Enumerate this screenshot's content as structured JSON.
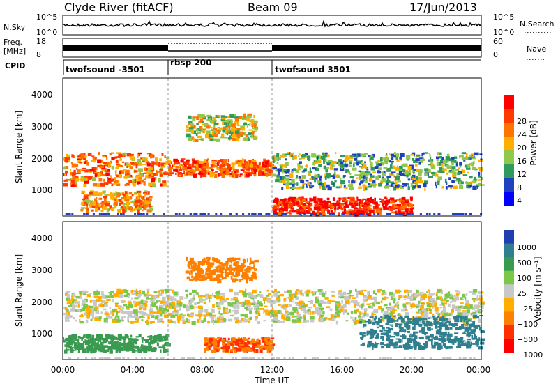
{
  "header": {
    "station": "Clyde River (fitACF)",
    "beam": "Beam 09",
    "date": "17/Jun/2013"
  },
  "strips": {
    "nsky_label": "N.Sky",
    "nsky_ticks": [
      "10^5",
      "10^0"
    ],
    "nsearch_label": "N.Search",
    "nsearch_ticks": [
      "10^5",
      "10^0"
    ],
    "freq_label_1": "Freq.",
    "freq_label_2": "[MHz]",
    "freq_ticks": [
      "18",
      "8"
    ],
    "nave_label": "Nave",
    "nave_ticks": [
      "60",
      "0"
    ],
    "cpid_label": "CPID",
    "cpid_segments": [
      {
        "name": "twofsound -3501",
        "start_hour": 0
      },
      {
        "name": "rbsp 200",
        "start_hour": 6
      },
      {
        "name": "twofsound 3501",
        "start_hour": 12
      }
    ]
  },
  "power_panel": {
    "ylabel": "Slant Range [km]",
    "yticks": [
      "4000",
      "3000",
      "2000",
      "1000"
    ],
    "colorbar_label": "Power [dB]",
    "colorbar_ticks": [
      "28",
      "24",
      "20",
      "16",
      "12",
      "8",
      "4"
    ],
    "colors": [
      "#ff0000",
      "#ff3a00",
      "#ff7400",
      "#ffaf00",
      "#8fc84a",
      "#2e9a5c",
      "#2040c0",
      "#0000ff"
    ]
  },
  "velocity_panel": {
    "ylabel": "Slant Range [km]",
    "yticks": [
      "4000",
      "3000",
      "2000",
      "1000"
    ],
    "colorbar_label": "Velocity [m s⁻¹]",
    "colorbar_ticks": [
      "1000",
      "500",
      "100",
      "25",
      "−25",
      "−100",
      "−500",
      "−1000"
    ],
    "colors": [
      "#1f3fb0",
      "#2f7f8f",
      "#3a9a50",
      "#7ac84a",
      "#c8c8c8",
      "#ffae00",
      "#ff8000",
      "#ff3000",
      "#ff0000"
    ]
  },
  "x_axis": {
    "label": "Time UT",
    "ticks": [
      "00:00",
      "04:00",
      "08:00",
      "12:00",
      "16:00",
      "20:00",
      "00:00"
    ]
  },
  "chart_data": [
    {
      "type": "heatmap",
      "title": "",
      "xlabel": "Time UT",
      "ylabel": "Slant Range [km]",
      "xlim_hours": [
        0,
        24
      ],
      "ylim_km": [
        200,
        4500
      ],
      "colorbar": "Power [dB]",
      "color_levels": [
        4,
        8,
        12,
        16,
        20,
        24,
        28
      ],
      "regions": [
        {
          "t": [
            0,
            6
          ],
          "range_km": [
            1200,
            2200
          ],
          "power_db": 20
        },
        {
          "t": [
            1,
            5
          ],
          "range_km": [
            400,
            1000
          ],
          "power_db": 18
        },
        {
          "t": [
            7,
            11
          ],
          "range_km": [
            2600,
            3400
          ],
          "power_db": 14
        },
        {
          "t": [
            6,
            12
          ],
          "range_km": [
            1500,
            2000
          ],
          "power_db": 22
        },
        {
          "t": [
            12,
            24
          ],
          "range_km": [
            1100,
            2200
          ],
          "power_db": 10
        },
        {
          "t": [
            12,
            20
          ],
          "range_km": [
            300,
            800
          ],
          "power_db": 26
        }
      ]
    },
    {
      "type": "heatmap",
      "title": "",
      "xlabel": "Time UT",
      "ylabel": "Slant Range [km]",
      "xlim_hours": [
        0,
        24
      ],
      "ylim_km": [
        200,
        4500
      ],
      "colorbar": "Velocity [m s⁻¹]",
      "color_levels": [
        -1000,
        -500,
        -100,
        -25,
        25,
        100,
        500,
        1000
      ],
      "regions": [
        {
          "t": [
            0,
            24
          ],
          "range_km": [
            1400,
            2400
          ],
          "velocity": 0
        },
        {
          "t": [
            7,
            11
          ],
          "range_km": [
            2700,
            3400
          ],
          "velocity": -200
        },
        {
          "t": [
            0,
            6
          ],
          "range_km": [
            500,
            1000
          ],
          "velocity": 150
        },
        {
          "t": [
            8,
            12
          ],
          "range_km": [
            500,
            900
          ],
          "velocity": -300
        },
        {
          "t": [
            17,
            24
          ],
          "range_km": [
            600,
            1600
          ],
          "velocity": 600
        }
      ]
    }
  ]
}
